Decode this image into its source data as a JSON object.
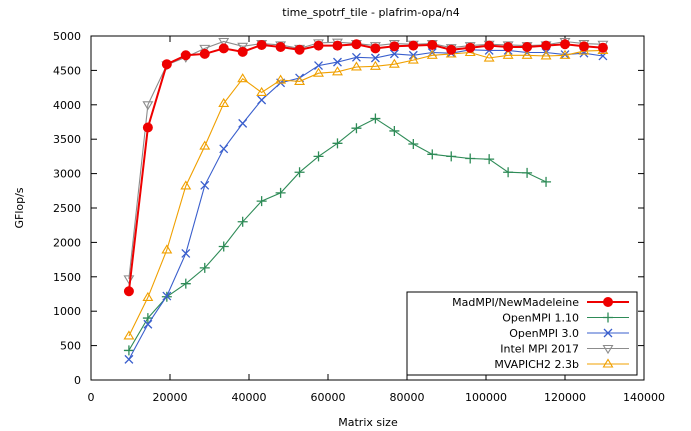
{
  "chart_data": {
    "type": "line",
    "title": "time_spotrf_tile - plafrim-opa/n4",
    "xlabel": "Matrix size",
    "ylabel": "GFlop/s",
    "xlim": [
      0,
      140000
    ],
    "ylim": [
      0,
      5000
    ],
    "xticks": [
      {
        "value": 0,
        "label": "0"
      },
      {
        "value": 20000,
        "label": "20000"
      },
      {
        "value": 40000,
        "label": "40000"
      },
      {
        "value": 60000,
        "label": "60000"
      },
      {
        "value": 80000,
        "label": "80000"
      },
      {
        "value": 100000,
        "label": "100000"
      },
      {
        "value": 120000,
        "label": "120000"
      },
      {
        "value": 140000,
        "label": "140000"
      }
    ],
    "yticks": [
      {
        "value": 0,
        "label": "0"
      },
      {
        "value": 500,
        "label": "500"
      },
      {
        "value": 1000,
        "label": "1000"
      },
      {
        "value": 1500,
        "label": "1500"
      },
      {
        "value": 2000,
        "label": "2000"
      },
      {
        "value": 2500,
        "label": "2500"
      },
      {
        "value": 3000,
        "label": "3000"
      },
      {
        "value": 3500,
        "label": "3500"
      },
      {
        "value": 4000,
        "label": "4000"
      },
      {
        "value": 4500,
        "label": "4500"
      },
      {
        "value": 5000,
        "label": "5000"
      }
    ],
    "grid": false,
    "legend_position": "bottom-right",
    "series": [
      {
        "name": "MadMPI/NewMadeleine",
        "color": "#ee0000",
        "marker": "circle",
        "x": [
          9600,
          14400,
          19200,
          24000,
          28800,
          33600,
          38400,
          43200,
          48000,
          52800,
          57600,
          62400,
          67200,
          72000,
          76800,
          81600,
          86400,
          91200,
          96000,
          100800,
          105600,
          110400,
          115200,
          120000,
          124800,
          129600
        ],
        "y": [
          1290,
          3670,
          4590,
          4720,
          4740,
          4820,
          4770,
          4870,
          4840,
          4800,
          4860,
          4860,
          4880,
          4820,
          4850,
          4860,
          4870,
          4800,
          4830,
          4860,
          4840,
          4840,
          4860,
          4880,
          4850,
          4830
        ]
      },
      {
        "name": "OpenMPI 1.10",
        "color": "#2e8b57",
        "marker": "plus",
        "x": [
          9600,
          14400,
          19200,
          24000,
          28800,
          33600,
          38400,
          43200,
          48000,
          52800,
          57600,
          62400,
          67200,
          72000,
          76800,
          81600,
          86400,
          91200,
          96000,
          100800,
          105600,
          110400,
          115200
        ],
        "y": [
          430,
          900,
          1210,
          1400,
          1630,
          1940,
          2300,
          2600,
          2720,
          3020,
          3250,
          3440,
          3660,
          3800,
          3620,
          3430,
          3280,
          3250,
          3220,
          3210,
          3020,
          3010,
          2880
        ]
      },
      {
        "name": "OpenMPI 3.0",
        "color": "#3a5fcd",
        "marker": "x",
        "x": [
          9600,
          14400,
          19200,
          24000,
          28800,
          33600,
          38400,
          43200,
          48000,
          52800,
          57600,
          62400,
          67200,
          72000,
          76800,
          81600,
          86400,
          91200,
          96000,
          100800,
          105600,
          110400,
          115200,
          120000,
          124800,
          129600
        ],
        "y": [
          300,
          810,
          1220,
          1840,
          2830,
          3360,
          3730,
          4070,
          4320,
          4390,
          4570,
          4620,
          4690,
          4680,
          4740,
          4720,
          4760,
          4750,
          4800,
          4790,
          4790,
          4760,
          4760,
          4730,
          4750,
          4710
        ]
      },
      {
        "name": "Intel MPI 2017",
        "color": "#8c8c8c",
        "marker": "triangle-down",
        "x": [
          9600,
          14400,
          19200,
          24000,
          28800,
          33600,
          38400,
          43200,
          48000,
          52800,
          57600,
          62400,
          67200,
          72000,
          76800,
          81600,
          86400,
          91200,
          96000,
          100800,
          105600,
          110400,
          115200,
          120000,
          124800,
          129600
        ],
        "y": [
          1470,
          4000,
          4580,
          4690,
          4820,
          4920,
          4850,
          4890,
          4870,
          4820,
          4900,
          4910,
          4890,
          4860,
          4890,
          4880,
          4890,
          4830,
          4860,
          4880,
          4870,
          4860,
          4870,
          4920,
          4890,
          4880
        ]
      },
      {
        "name": "MVAPICH2 2.3b",
        "color": "#f0a000",
        "marker": "triangle-up",
        "x": [
          9600,
          14400,
          19200,
          24000,
          28800,
          33600,
          38400,
          43200,
          48000,
          52800,
          57600,
          62400,
          67200,
          72000,
          76800,
          81600,
          86400,
          91200,
          96000,
          100800,
          105600,
          110400,
          115200,
          120000,
          124800,
          129600
        ],
        "y": [
          640,
          1200,
          1890,
          2820,
          3400,
          4020,
          4380,
          4180,
          4360,
          4340,
          4460,
          4480,
          4550,
          4560,
          4590,
          4650,
          4720,
          4740,
          4760,
          4680,
          4720,
          4720,
          4710,
          4720,
          4780,
          4790
        ]
      }
    ]
  }
}
